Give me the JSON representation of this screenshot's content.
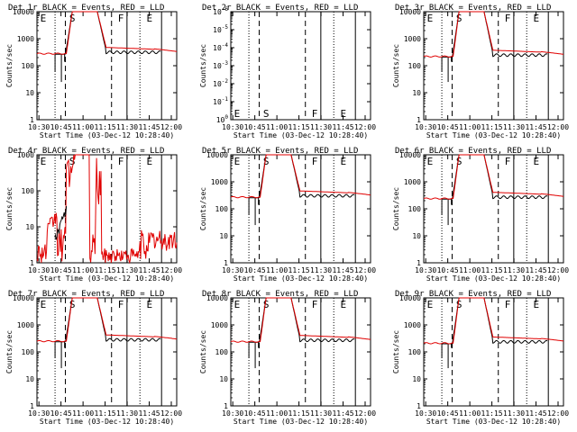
{
  "figure": {
    "xlabel": "Start Time (03-Dec-12 10:28:40)",
    "ylabel": "Counts/sec",
    "xticks": [
      "10:30",
      "10:45",
      "11:00",
      "11:15",
      "11:30",
      "11:45",
      "12:00"
    ],
    "title_suffix": " BLACK = Events, RED = LLD",
    "event_color": "#000000",
    "lld_color": "#e00000"
  },
  "chart_data": [
    {
      "type": "line",
      "title": "Det 1r BLACK = Events, RED = LLD",
      "scale": "log",
      "ylim": [
        1,
        10000
      ],
      "yticks": [
        "1",
        "10",
        "100",
        "1000",
        "10000"
      ],
      "markers": [
        "E",
        "S",
        "F",
        "E"
      ],
      "profile": "flare",
      "base": 280,
      "peak": 10000
    },
    {
      "type": "line",
      "title": "Det 2r BLACK = Events, RED = LLD",
      "scale": "log",
      "ylim": [
        1,
        1e-06
      ],
      "yticks": [
        "10^0",
        "10^-1",
        "10^-2",
        "10^-3",
        "10^-4",
        "10^-5",
        "10^-6"
      ],
      "markers": [
        "E",
        "S",
        "F",
        "E"
      ],
      "profile": "empty"
    },
    {
      "type": "line",
      "title": "Det 3r BLACK = Events, RED = LLD",
      "scale": "log",
      "ylim": [
        1,
        10000
      ],
      "yticks": [
        "1",
        "10",
        "100",
        "1000",
        "10000"
      ],
      "markers": [
        "E",
        "S",
        "F",
        "E"
      ],
      "profile": "flare",
      "base": 220,
      "peak": 10000
    },
    {
      "type": "line",
      "title": "Det 4r BLACK = Events, RED = LLD",
      "scale": "log",
      "ylim": [
        1,
        1000
      ],
      "yticks": [
        "1",
        "10",
        "100",
        "1000"
      ],
      "markers": [
        "E",
        "S",
        "F",
        "E"
      ],
      "profile": "noisy"
    },
    {
      "type": "line",
      "title": "Det 5r BLACK = Events, RED = LLD",
      "scale": "log",
      "ylim": [
        1,
        10000
      ],
      "yticks": [
        "1",
        "10",
        "100",
        "1000",
        "10000"
      ],
      "markers": [
        "E",
        "S",
        "F",
        "E"
      ],
      "profile": "flare",
      "base": 270,
      "peak": 10000
    },
    {
      "type": "line",
      "title": "Det 6r BLACK = Events, RED = LLD",
      "scale": "log",
      "ylim": [
        1,
        10000
      ],
      "yticks": [
        "1",
        "10",
        "100",
        "1000",
        "10000"
      ],
      "markers": [
        "E",
        "S",
        "F",
        "E"
      ],
      "profile": "flare",
      "base": 240,
      "peak": 10000
    },
    {
      "type": "line",
      "title": "Det 7r BLACK = Events, RED = LLD",
      "scale": "log",
      "ylim": [
        1,
        10000
      ],
      "yticks": [
        "1",
        "10",
        "100",
        "1000",
        "10000"
      ],
      "markers": [
        "E",
        "S",
        "F",
        "E"
      ],
      "profile": "flare",
      "base": 250,
      "peak": 10000
    },
    {
      "type": "line",
      "title": "Det 8r BLACK = Events, RED = LLD",
      "scale": "log",
      "ylim": [
        1,
        10000
      ],
      "yticks": [
        "1",
        "10",
        "100",
        "1000",
        "10000"
      ],
      "markers": [
        "E",
        "S",
        "F",
        "E"
      ],
      "profile": "flare",
      "base": 240,
      "peak": 10000
    },
    {
      "type": "line",
      "title": "Det 9r BLACK = Events, RED = LLD",
      "scale": "log",
      "ylim": [
        1,
        10000
      ],
      "yticks": [
        "1",
        "10",
        "100",
        "1000",
        "10000"
      ],
      "markers": [
        "E",
        "S",
        "F",
        "E"
      ],
      "profile": "flare",
      "base": 210,
      "peak": 10000
    }
  ]
}
